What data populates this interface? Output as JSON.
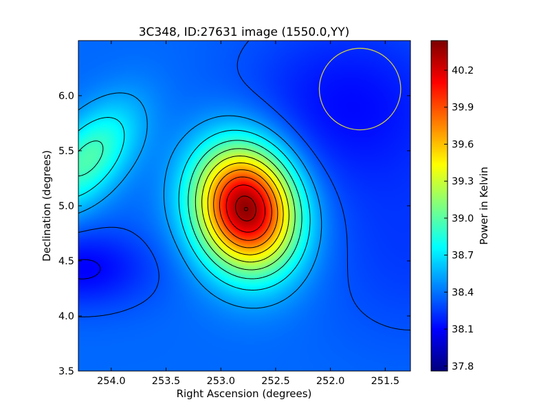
{
  "chart_data": {
    "type": "heatmap",
    "title": "3C348, ID:27631 image (1550.0,YY)",
    "xlabel": "Right Ascension (degrees)",
    "ylabel": "Declination (degrees)",
    "colorbar_label": "Power in Kelvin",
    "colormap": "jet",
    "xlim": [
      254.3,
      251.27
    ],
    "ylim": [
      3.5,
      6.5
    ],
    "clim": [
      37.76,
      40.44
    ],
    "x_ticks": [
      254.0,
      253.5,
      253.0,
      252.5,
      252.0,
      251.5
    ],
    "x_tick_labels": [
      "254.0",
      "253.5",
      "253.0",
      "252.5",
      "252.0",
      "251.5"
    ],
    "y_ticks": [
      3.5,
      4.0,
      4.5,
      5.0,
      5.5,
      6.0
    ],
    "y_tick_labels": [
      "3.5",
      "4.0",
      "4.5",
      "5.0",
      "5.5",
      "6.0"
    ],
    "colorbar_ticks": [
      37.8,
      38.1,
      38.4,
      38.7,
      39.0,
      39.3,
      39.6,
      39.9,
      40.2
    ],
    "colorbar_tick_labels": [
      "37.8",
      "38.1",
      "38.4",
      "38.7",
      "39.0",
      "39.3",
      "39.6",
      "39.9",
      "40.2"
    ],
    "peak": {
      "ra": 252.77,
      "dec": 4.98,
      "value": 40.42
    },
    "source_marker": {
      "ra": 252.77,
      "dec": 4.97
    },
    "beam_circle": {
      "ra": 251.73,
      "dec": 6.06,
      "radius_deg": 0.37,
      "color": "#cccc44"
    },
    "contour_color": "#000000"
  }
}
